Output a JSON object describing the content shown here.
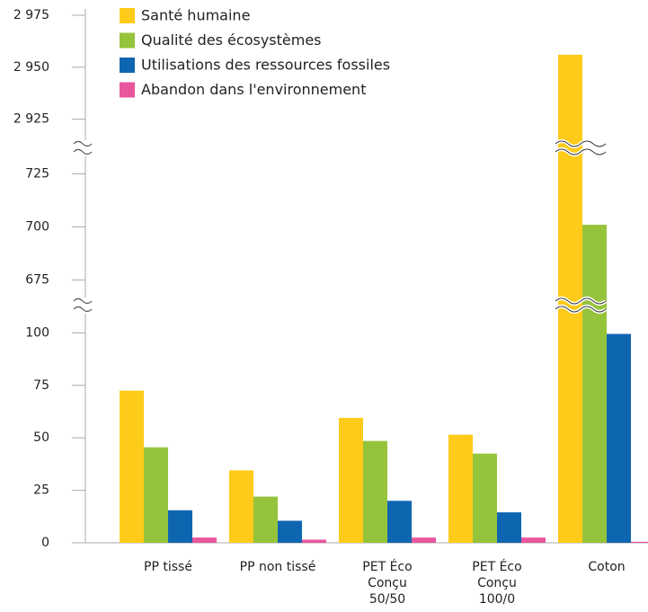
{
  "chart_data": {
    "type": "bar",
    "categories": [
      "PP tissé",
      "PP non tissé",
      "PET Éco\nConçu\n50/50",
      "PET Éco\nConçu\n100/0",
      "Coton"
    ],
    "series": [
      {
        "name": "Santé humaine",
        "color": "#fecb1a",
        "values": [
          72.5,
          34.5,
          59.5,
          51.5,
          2956
        ]
      },
      {
        "name": "Qualité des écosystèmes",
        "color": "#95c43c",
        "values": [
          45.5,
          22,
          48.5,
          42.5,
          701
        ]
      },
      {
        "name": "Utilisations des ressources fossiles",
        "color": "#0f66b0",
        "values": [
          15.5,
          10.5,
          20,
          14.5,
          99.5
        ]
      },
      {
        "name": "Abandon dans l'environnement",
        "color": "#e8569e",
        "values": [
          2.5,
          1.5,
          2.5,
          2.5,
          0.5
        ]
      }
    ],
    "ylim": [
      [
        0,
        113
      ],
      [
        663,
        737
      ],
      [
        2911,
        2978
      ]
    ],
    "yticks": [
      0,
      25,
      50,
      75,
      100,
      675,
      700,
      725,
      {
        "value": 2925,
        "label": "2 925"
      },
      {
        "value": 2950,
        "label": "2 950"
      },
      {
        "value": 2975,
        "label": "2 975"
      }
    ],
    "grid": false
  }
}
